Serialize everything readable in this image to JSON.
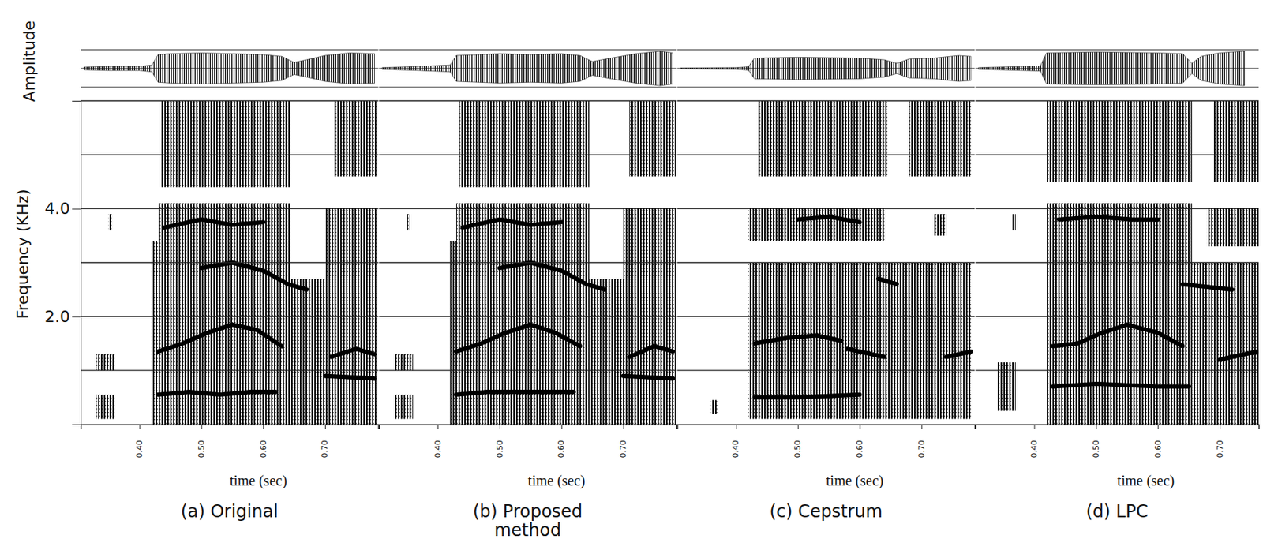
{
  "chart_data": {
    "type": "spectrogram",
    "amplitude_label": "Amplitude",
    "y_label": "Frequency (KHz)",
    "x_label": "time (sec)",
    "ylim": [
      0,
      6
    ],
    "yticks": [
      {
        "value": 2,
        "label": "2.0"
      },
      {
        "value": 4,
        "label": "4.0"
      }
    ],
    "grid": true,
    "gridlines": [
      1,
      2,
      3,
      4,
      5
    ],
    "amplitude_lim": [
      0,
      1
    ],
    "panels": [
      {
        "caption": "(a) Original",
        "xlim": [
          0.305,
          0.786
        ],
        "xticks": [
          {
            "value": 0.4,
            "label": "0.40"
          },
          {
            "value": 0.5,
            "label": "0.50"
          },
          {
            "value": 0.6,
            "label": "0.60"
          },
          {
            "value": 0.7,
            "label": "0.70"
          }
        ],
        "envelope": {
          "t": [
            0.31,
            0.35,
            0.4,
            0.42,
            0.43,
            0.45,
            0.5,
            0.55,
            0.6,
            0.63,
            0.65,
            0.67,
            0.7,
            0.74,
            0.78
          ],
          "amplitude": [
            0.08,
            0.12,
            0.12,
            0.2,
            0.8,
            0.85,
            0.9,
            0.85,
            0.8,
            0.7,
            0.35,
            0.5,
            0.75,
            0.9,
            0.85
          ]
        },
        "regions": [
          {
            "t": [
              0.33,
              0.36
            ],
            "f": [
              0.1,
              0.55
            ]
          },
          {
            "t": [
              0.33,
              0.36
            ],
            "f": [
              1.0,
              1.3
            ]
          },
          {
            "t": [
              0.35,
              0.355
            ],
            "f": [
              3.6,
              3.9
            ]
          },
          {
            "t": [
              0.42,
              0.645
            ],
            "f": [
              0,
              3.4
            ]
          },
          {
            "t": [
              0.43,
              0.645
            ],
            "f": [
              3.4,
              4.1
            ]
          },
          {
            "t": [
              0.435,
              0.645
            ],
            "f": [
              4.4,
              6.0
            ]
          },
          {
            "t": [
              0.645,
              0.785
            ],
            "f": [
              0,
              2.7
            ]
          },
          {
            "t": [
              0.7,
              0.785
            ],
            "f": [
              2.7,
              4.0
            ]
          },
          {
            "t": [
              0.715,
              0.785
            ],
            "f": [
              4.6,
              6.0
            ]
          }
        ],
        "formants": [
          {
            "t": [
              0.43,
              0.48,
              0.53,
              0.58,
              0.62
            ],
            "f": [
              0.55,
              0.6,
              0.55,
              0.6,
              0.6
            ]
          },
          {
            "t": [
              0.43,
              0.47,
              0.51,
              0.55,
              0.59,
              0.63
            ],
            "f": [
              1.35,
              1.5,
              1.7,
              1.85,
              1.75,
              1.45
            ]
          },
          {
            "t": [
              0.5,
              0.55,
              0.6,
              0.64,
              0.67
            ],
            "f": [
              2.9,
              3.0,
              2.85,
              2.6,
              2.5
            ]
          },
          {
            "t": [
              0.44,
              0.5,
              0.55,
              0.6
            ],
            "f": [
              3.65,
              3.8,
              3.7,
              3.75
            ]
          },
          {
            "t": [
              0.71,
              0.75,
              0.78
            ],
            "f": [
              1.25,
              1.4,
              1.3
            ]
          },
          {
            "t": [
              0.7,
              0.78
            ],
            "f": [
              0.9,
              0.85
            ]
          }
        ]
      },
      {
        "caption": "(b) Proposed method",
        "xlim": [
          0.305,
          0.786
        ],
        "xticks": [
          {
            "value": 0.4,
            "label": "0.40"
          },
          {
            "value": 0.5,
            "label": "0.50"
          },
          {
            "value": 0.6,
            "label": "0.60"
          },
          {
            "value": 0.7,
            "label": "0.70"
          }
        ],
        "envelope": {
          "t": [
            0.31,
            0.37,
            0.42,
            0.43,
            0.5,
            0.55,
            0.6,
            0.63,
            0.65,
            0.68,
            0.72,
            0.76,
            0.78
          ],
          "amplitude": [
            0.05,
            0.12,
            0.2,
            0.75,
            0.85,
            0.8,
            0.85,
            0.75,
            0.4,
            0.6,
            0.85,
            1.0,
            0.9
          ]
        },
        "regions": [
          {
            "t": [
              0.33,
              0.36
            ],
            "f": [
              0.1,
              0.55
            ]
          },
          {
            "t": [
              0.33,
              0.36
            ],
            "f": [
              1.0,
              1.3
            ]
          },
          {
            "t": [
              0.35,
              0.355
            ],
            "f": [
              3.6,
              3.9
            ]
          },
          {
            "t": [
              0.42,
              0.645
            ],
            "f": [
              0,
              3.4
            ]
          },
          {
            "t": [
              0.43,
              0.645
            ],
            "f": [
              3.4,
              4.1
            ]
          },
          {
            "t": [
              0.435,
              0.645
            ],
            "f": [
              4.4,
              6.0
            ]
          },
          {
            "t": [
              0.645,
              0.785
            ],
            "f": [
              0,
              2.7
            ]
          },
          {
            "t": [
              0.7,
              0.785
            ],
            "f": [
              2.7,
              4.0
            ]
          },
          {
            "t": [
              0.71,
              0.785
            ],
            "f": [
              4.6,
              6.0
            ]
          }
        ],
        "formants": [
          {
            "t": [
              0.43,
              0.48,
              0.53,
              0.58,
              0.62
            ],
            "f": [
              0.55,
              0.6,
              0.6,
              0.6,
              0.6
            ]
          },
          {
            "t": [
              0.43,
              0.47,
              0.51,
              0.55,
              0.59,
              0.63
            ],
            "f": [
              1.35,
              1.5,
              1.7,
              1.85,
              1.7,
              1.45
            ]
          },
          {
            "t": [
              0.5,
              0.55,
              0.6,
              0.64,
              0.67
            ],
            "f": [
              2.9,
              3.0,
              2.85,
              2.6,
              2.5
            ]
          },
          {
            "t": [
              0.44,
              0.5,
              0.55,
              0.6
            ],
            "f": [
              3.65,
              3.8,
              3.7,
              3.75
            ]
          },
          {
            "t": [
              0.71,
              0.75,
              0.78
            ],
            "f": [
              1.25,
              1.45,
              1.35
            ]
          },
          {
            "t": [
              0.7,
              0.78
            ],
            "f": [
              0.9,
              0.85
            ]
          }
        ]
      },
      {
        "caption": "(c) Cepstrum",
        "xlim": [
          0.305,
          0.786
        ],
        "xticks": [
          {
            "value": 0.4,
            "label": "0.40"
          },
          {
            "value": 0.5,
            "label": "0.50"
          },
          {
            "value": 0.6,
            "label": "0.60"
          },
          {
            "value": 0.7,
            "label": "0.70"
          }
        ],
        "envelope": {
          "t": [
            0.31,
            0.4,
            0.42,
            0.43,
            0.5,
            0.6,
            0.64,
            0.66,
            0.68,
            0.72,
            0.76,
            0.78
          ],
          "amplitude": [
            0.03,
            0.05,
            0.1,
            0.6,
            0.65,
            0.6,
            0.5,
            0.3,
            0.55,
            0.6,
            0.75,
            0.7
          ]
        },
        "regions": [
          {
            "t": [
              0.36,
              0.37
            ],
            "f": [
              0.2,
              0.45
            ]
          },
          {
            "t": [
              0.42,
              0.78
            ],
            "f": [
              0.1,
              3.0
            ]
          },
          {
            "t": [
              0.42,
              0.64
            ],
            "f": [
              3.4,
              4.0
            ]
          },
          {
            "t": [
              0.435,
              0.645
            ],
            "f": [
              4.6,
              6.0
            ]
          },
          {
            "t": [
              0.68,
              0.78
            ],
            "f": [
              4.6,
              6.0
            ]
          },
          {
            "t": [
              0.72,
              0.74
            ],
            "f": [
              3.5,
              3.9
            ]
          }
        ],
        "formants": [
          {
            "t": [
              0.43,
              0.5,
              0.6
            ],
            "f": [
              0.5,
              0.5,
              0.55
            ]
          },
          {
            "t": [
              0.43,
              0.48,
              0.53,
              0.57
            ],
            "f": [
              1.5,
              1.6,
              1.65,
              1.55
            ]
          },
          {
            "t": [
              0.58,
              0.62,
              0.64
            ],
            "f": [
              1.4,
              1.3,
              1.25
            ]
          },
          {
            "t": [
              0.63,
              0.66
            ],
            "f": [
              2.7,
              2.6
            ]
          },
          {
            "t": [
              0.5,
              0.55,
              0.6
            ],
            "f": [
              3.8,
              3.85,
              3.75
            ]
          },
          {
            "t": [
              0.74,
              0.78
            ],
            "f": [
              1.25,
              1.35
            ]
          }
        ]
      },
      {
        "caption": "(d) LPC",
        "xlim": [
          0.305,
          0.763
        ],
        "xticks": [
          {
            "value": 0.4,
            "label": "0.40"
          },
          {
            "value": 0.5,
            "label": "0.50"
          },
          {
            "value": 0.6,
            "label": "0.60"
          },
          {
            "value": 0.7,
            "label": "0.70"
          }
        ],
        "envelope": {
          "t": [
            0.31,
            0.41,
            0.42,
            0.5,
            0.6,
            0.64,
            0.655,
            0.67,
            0.7,
            0.74
          ],
          "amplitude": [
            0.05,
            0.15,
            0.9,
            0.95,
            0.9,
            0.85,
            0.3,
            0.7,
            0.9,
            1.0
          ]
        },
        "regions": [
          {
            "t": [
              0.34,
              0.37
            ],
            "f": [
              0.25,
              1.15
            ]
          },
          {
            "t": [
              0.365,
              0.37
            ],
            "f": [
              3.6,
              3.9
            ]
          },
          {
            "t": [
              0.42,
              0.655
            ],
            "f": [
              0,
              3.4
            ]
          },
          {
            "t": [
              0.42,
              0.655
            ],
            "f": [
              3.4,
              4.1
            ]
          },
          {
            "t": [
              0.42,
              0.655
            ],
            "f": [
              4.5,
              6.0
            ]
          },
          {
            "t": [
              0.655,
              0.763
            ],
            "f": [
              0,
              3.0
            ]
          },
          {
            "t": [
              0.68,
              0.763
            ],
            "f": [
              3.3,
              4.0
            ]
          },
          {
            "t": [
              0.69,
              0.763
            ],
            "f": [
              4.5,
              6.0
            ]
          }
        ],
        "formants": [
          {
            "t": [
              0.43,
              0.5,
              0.6,
              0.65
            ],
            "f": [
              0.7,
              0.75,
              0.7,
              0.7
            ]
          },
          {
            "t": [
              0.43,
              0.47,
              0.51,
              0.55,
              0.6,
              0.64
            ],
            "f": [
              1.45,
              1.5,
              1.7,
              1.85,
              1.7,
              1.45
            ]
          },
          {
            "t": [
              0.64,
              0.68,
              0.72
            ],
            "f": [
              2.6,
              2.55,
              2.5
            ]
          },
          {
            "t": [
              0.44,
              0.5,
              0.56,
              0.6
            ],
            "f": [
              3.8,
              3.85,
              3.8,
              3.8
            ]
          },
          {
            "t": [
              0.7,
              0.76
            ],
            "f": [
              1.2,
              1.35
            ]
          }
        ]
      }
    ]
  }
}
